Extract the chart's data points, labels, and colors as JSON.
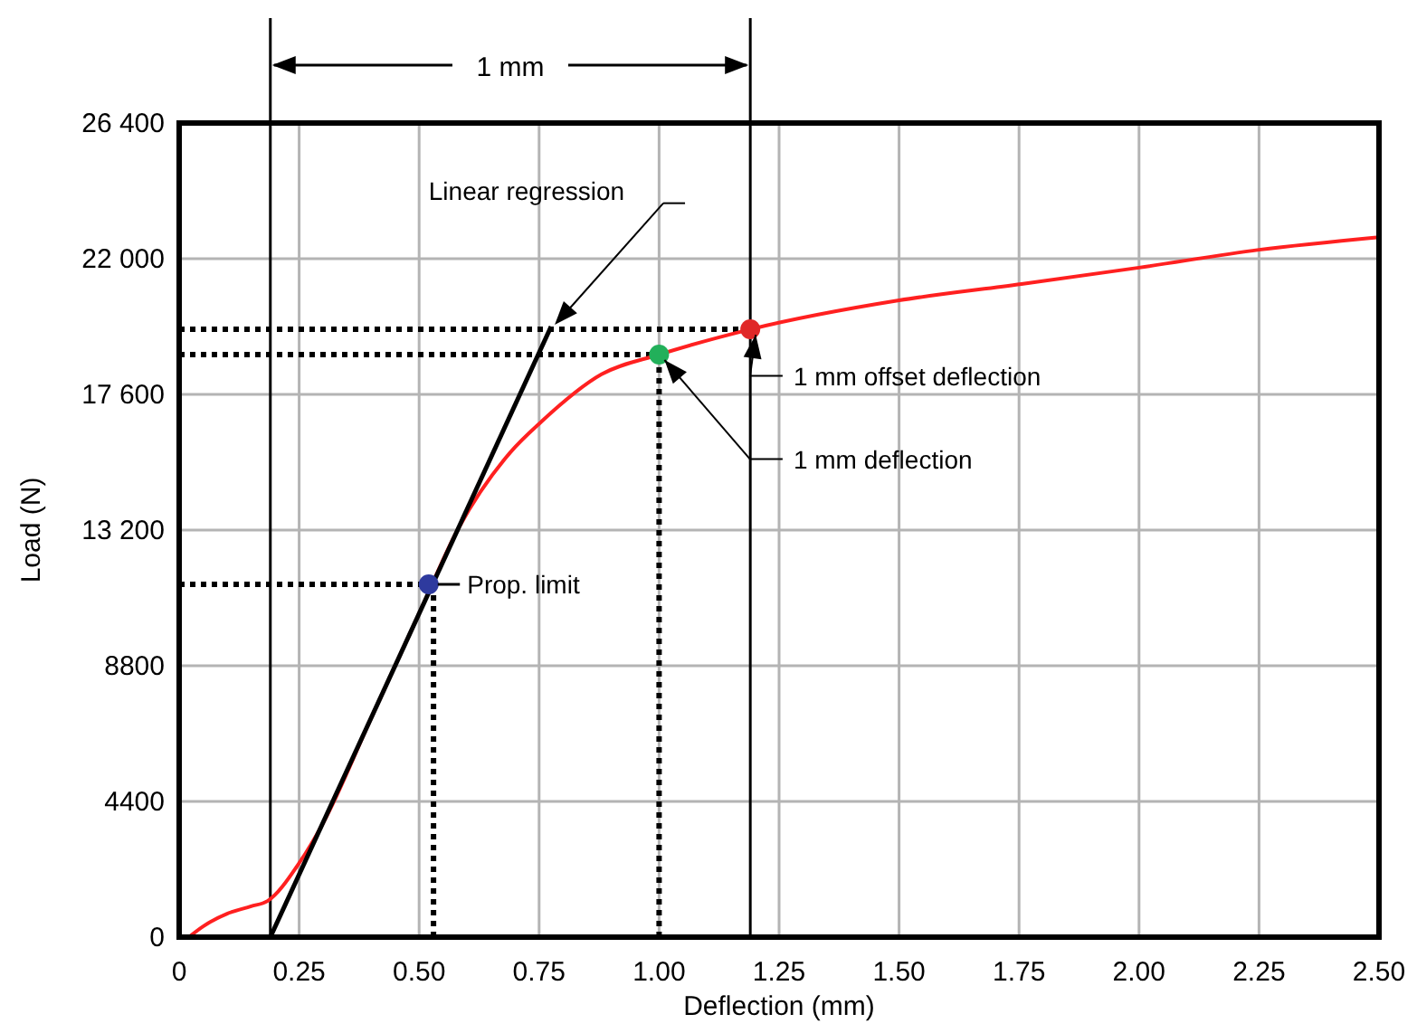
{
  "chart_data": {
    "type": "line",
    "xlabel": "Deflection (mm)",
    "ylabel": "Load (N)",
    "xlim": [
      0,
      2.5
    ],
    "ylim": [
      0,
      26400
    ],
    "xticks": [
      0,
      0.25,
      {
        "value": 0.5,
        "label": "0.50"
      },
      0.75,
      {
        "value": 1,
        "label": "1.00"
      },
      1.25,
      {
        "value": 1.5,
        "label": "1.50"
      },
      1.75,
      {
        "value": 2,
        "label": "2.00"
      },
      2.25,
      {
        "value": 2.5,
        "label": "2.50"
      }
    ],
    "yticks": [
      0,
      4400,
      8800,
      {
        "value": 13200,
        "label": "13 200"
      },
      {
        "value": 17600,
        "label": "17 600"
      },
      {
        "value": 22000,
        "label": "22 000"
      },
      {
        "value": 26400,
        "label": "26 400"
      }
    ],
    "grid": true,
    "series": [
      {
        "type": "line",
        "color": "#000000",
        "line_style": "dotted",
        "x": [
          0,
          1.19
        ],
        "values": [
          19710,
          19710
        ]
      },
      {
        "type": "line",
        "color": "#000000",
        "line_style": "dotted",
        "x": [
          0,
          1.0
        ],
        "values": [
          18890,
          18890
        ]
      },
      {
        "type": "line",
        "color": "#000000",
        "line_style": "dotted",
        "x": [
          0,
          0.53
        ],
        "values": [
          11440,
          11440
        ]
      },
      {
        "type": "line",
        "color": "#000000",
        "line_style": "dotted",
        "x": [
          0.53,
          0.53
        ],
        "values": [
          0,
          11440
        ]
      },
      {
        "type": "line",
        "color": "#000000",
        "line_style": "dotted",
        "x": [
          1.0,
          1.0
        ],
        "values": [
          0,
          18890
        ]
      },
      {
        "color": "#ff2020",
        "line_style": "solid",
        "x": [
          0.02,
          0.05,
          0.1,
          0.15,
          0.184,
          0.25,
          0.3,
          0.4,
          0.5,
          0.58,
          0.69,
          0.755,
          0.88,
          1.0,
          1.19,
          1.5,
          1.755,
          2.0,
          2.25,
          2.5
        ],
        "values": [
          0,
          350,
          760,
          1000,
          1170,
          2400,
          3700,
          7100,
          10500,
          13200,
          15720,
          16720,
          18250,
          18890,
          19710,
          20650,
          21180,
          21710,
          22290,
          22700
        ]
      },
      {
        "type": "line",
        "color": "#000000",
        "line_style": "solid",
        "x": [
          0.19,
          0.775
        ],
        "values": [
          0,
          19800
        ]
      },
      {
        "type": "scatter",
        "marker": "circle",
        "x": [
          0.52,
          1.0,
          1.19
        ],
        "values": [
          11440,
          18890,
          19710
        ],
        "colors": [
          "#2e3a9e",
          "#22b05a",
          "#e02828"
        ]
      }
    ],
    "ref_lines": [
      {
        "axis": "x",
        "value": 0.19,
        "color": "#000000",
        "line_style": "solid"
      },
      {
        "axis": "x",
        "value": 1.19,
        "color": "#000000",
        "line_style": "solid"
      }
    ],
    "annotations": [
      "Linear regression",
      {
        "text": "1 mm offset deflection",
        "x": 1.19,
        "y": 19710
      },
      "1 mm deflection",
      {
        "text": "Prop. limit",
        "x": 0.52,
        "y": 11440
      },
      "1 mm"
    ]
  }
}
